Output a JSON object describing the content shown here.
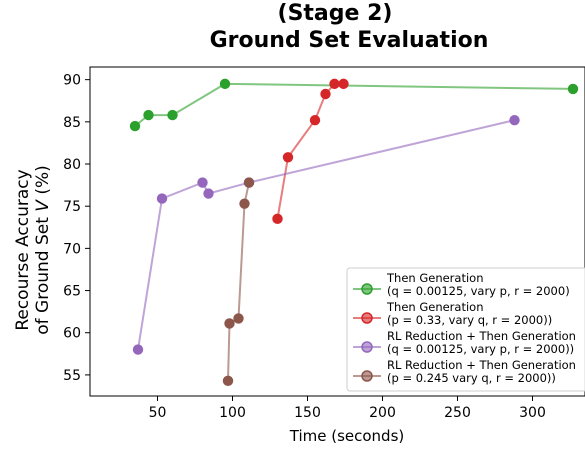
{
  "chart_data": {
    "type": "line",
    "title": [
      "(Stage 2)",
      "Ground Set Evaluation"
    ],
    "xlabel": "Time (seconds)",
    "ylabel": [
      "Recourse Accuracy",
      "of Ground Set V (%)"
    ],
    "xlim": [
      5,
      335
    ],
    "ylim": [
      52.5,
      91.5
    ],
    "xticks": [
      50,
      100,
      150,
      200,
      250,
      300
    ],
    "yticks": [
      55,
      60,
      65,
      70,
      75,
      80,
      85,
      90
    ],
    "grid": false,
    "legend_position": "lower-right",
    "series": [
      {
        "name": [
          "Then Generation",
          "(q = 0.00125, vary p, r = 2000)"
        ],
        "color": "#2ca02c",
        "points": [
          [
            35,
            84.5
          ],
          [
            44,
            85.8
          ],
          [
            60,
            85.8
          ],
          [
            95,
            89.5
          ],
          [
            327,
            88.9
          ]
        ]
      },
      {
        "name": [
          "Then Generation",
          "(p = 0.33, vary q, r = 2000))"
        ],
        "color": "#d62728",
        "points": [
          [
            130,
            73.5
          ],
          [
            137,
            80.8
          ],
          [
            155,
            85.2
          ],
          [
            162,
            88.3
          ],
          [
            168,
            89.5
          ],
          [
            174,
            89.5
          ]
        ]
      },
      {
        "name": [
          "RL Reduction + Then Generation",
          "(q = 0.00125, vary p, r = 2000))"
        ],
        "color": "#9467bd",
        "points": [
          [
            37,
            58.0
          ],
          [
            53,
            75.9
          ],
          [
            80,
            77.8
          ],
          [
            84,
            76.5
          ],
          [
            111,
            77.8
          ],
          [
            288,
            85.2
          ]
        ]
      },
      {
        "name": [
          "RL Reduction + Then Generation",
          "(p = 0.245 vary q, r = 2000))"
        ],
        "color": "#8c564b",
        "points": [
          [
            97,
            54.3
          ],
          [
            98,
            61.1
          ],
          [
            104,
            61.7
          ],
          [
            108,
            75.3
          ],
          [
            111,
            77.8
          ]
        ]
      }
    ]
  }
}
